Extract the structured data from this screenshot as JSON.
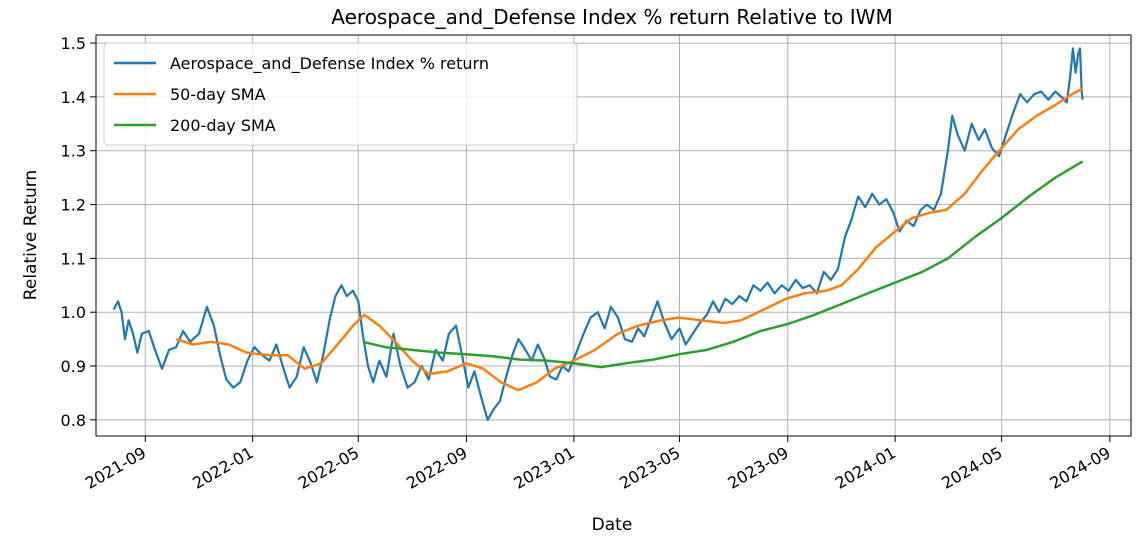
{
  "chart_data": {
    "type": "line",
    "title": "Aerospace_and_Defense Index % return Relative to IWM",
    "xlabel": "Date",
    "ylabel": "Relative Return",
    "xlim": [
      "2021-07-07",
      "2024-09-25"
    ],
    "ylim": [
      0.77,
      1.515
    ],
    "x_ticks": [
      "2021-09",
      "2022-01",
      "2022-05",
      "2022-09",
      "2023-01",
      "2023-05",
      "2023-09",
      "2024-01",
      "2024-05",
      "2024-09"
    ],
    "y_ticks": [
      "0.8",
      "0.9",
      "1.0",
      "1.1",
      "1.2",
      "1.3",
      "1.4",
      "1.5"
    ],
    "grid": true,
    "legend_position": "upper-left",
    "series": [
      {
        "name": "Aerospace_and_Defense Index % return",
        "color": "#1f77b4",
        "points": [
          [
            "2021-07-27",
            1.005
          ],
          [
            "2021-08-01",
            1.02
          ],
          [
            "2021-08-05",
            1.0
          ],
          [
            "2021-08-09",
            0.95
          ],
          [
            "2021-08-13",
            0.985
          ],
          [
            "2021-08-18",
            0.96
          ],
          [
            "2021-08-23",
            0.925
          ],
          [
            "2021-08-28",
            0.96
          ],
          [
            "2021-09-05",
            0.965
          ],
          [
            "2021-09-12",
            0.93
          ],
          [
            "2021-09-20",
            0.895
          ],
          [
            "2021-09-28",
            0.93
          ],
          [
            "2021-10-06",
            0.935
          ],
          [
            "2021-10-14",
            0.965
          ],
          [
            "2021-10-22",
            0.945
          ],
          [
            "2021-11-01",
            0.96
          ],
          [
            "2021-11-10",
            1.01
          ],
          [
            "2021-11-18",
            0.975
          ],
          [
            "2021-11-25",
            0.92
          ],
          [
            "2021-12-02",
            0.875
          ],
          [
            "2021-12-10",
            0.86
          ],
          [
            "2021-12-18",
            0.87
          ],
          [
            "2021-12-26",
            0.91
          ],
          [
            "2022-01-03",
            0.935
          ],
          [
            "2022-01-12",
            0.92
          ],
          [
            "2022-01-20",
            0.91
          ],
          [
            "2022-01-28",
            0.94
          ],
          [
            "2022-02-05",
            0.895
          ],
          [
            "2022-02-12",
            0.86
          ],
          [
            "2022-02-20",
            0.88
          ],
          [
            "2022-02-28",
            0.935
          ],
          [
            "2022-03-08",
            0.905
          ],
          [
            "2022-03-15",
            0.87
          ],
          [
            "2022-03-22",
            0.92
          ],
          [
            "2022-03-30",
            0.99
          ],
          [
            "2022-04-05",
            1.03
          ],
          [
            "2022-04-12",
            1.05
          ],
          [
            "2022-04-18",
            1.03
          ],
          [
            "2022-04-25",
            1.04
          ],
          [
            "2022-05-01",
            1.02
          ],
          [
            "2022-05-06",
            0.96
          ],
          [
            "2022-05-12",
            0.9
          ],
          [
            "2022-05-18",
            0.87
          ],
          [
            "2022-05-25",
            0.91
          ],
          [
            "2022-06-02",
            0.88
          ],
          [
            "2022-06-10",
            0.96
          ],
          [
            "2022-06-18",
            0.9
          ],
          [
            "2022-06-26",
            0.86
          ],
          [
            "2022-07-04",
            0.87
          ],
          [
            "2022-07-12",
            0.9
          ],
          [
            "2022-07-20",
            0.875
          ],
          [
            "2022-07-28",
            0.93
          ],
          [
            "2022-08-05",
            0.91
          ],
          [
            "2022-08-12",
            0.96
          ],
          [
            "2022-08-20",
            0.975
          ],
          [
            "2022-08-27",
            0.92
          ],
          [
            "2022-09-03",
            0.86
          ],
          [
            "2022-09-10",
            0.89
          ],
          [
            "2022-09-18",
            0.84
          ],
          [
            "2022-09-25",
            0.8
          ],
          [
            "2022-10-02",
            0.82
          ],
          [
            "2022-10-09",
            0.835
          ],
          [
            "2022-10-16",
            0.88
          ],
          [
            "2022-10-23",
            0.92
          ],
          [
            "2022-10-30",
            0.95
          ],
          [
            "2022-11-07",
            0.93
          ],
          [
            "2022-11-14",
            0.91
          ],
          [
            "2022-11-21",
            0.94
          ],
          [
            "2022-11-28",
            0.915
          ],
          [
            "2022-12-05",
            0.88
          ],
          [
            "2022-12-12",
            0.875
          ],
          [
            "2022-12-19",
            0.9
          ],
          [
            "2022-12-26",
            0.89
          ],
          [
            "2023-01-05",
            0.93
          ],
          [
            "2023-01-12",
            0.96
          ],
          [
            "2023-01-20",
            0.99
          ],
          [
            "2023-01-28",
            1.0
          ],
          [
            "2023-02-05",
            0.97
          ],
          [
            "2023-02-12",
            1.01
          ],
          [
            "2023-02-20",
            0.99
          ],
          [
            "2023-02-28",
            0.95
          ],
          [
            "2023-03-08",
            0.945
          ],
          [
            "2023-03-15",
            0.97
          ],
          [
            "2023-03-22",
            0.955
          ],
          [
            "2023-03-30",
            0.99
          ],
          [
            "2023-04-06",
            1.02
          ],
          [
            "2023-04-14",
            0.98
          ],
          [
            "2023-04-22",
            0.95
          ],
          [
            "2023-05-01",
            0.97
          ],
          [
            "2023-05-08",
            0.94
          ],
          [
            "2023-05-16",
            0.96
          ],
          [
            "2023-05-24",
            0.98
          ],
          [
            "2023-06-01",
            0.995
          ],
          [
            "2023-06-08",
            1.02
          ],
          [
            "2023-06-15",
            1.0
          ],
          [
            "2023-06-22",
            1.025
          ],
          [
            "2023-06-30",
            1.015
          ],
          [
            "2023-07-08",
            1.03
          ],
          [
            "2023-07-16",
            1.02
          ],
          [
            "2023-07-24",
            1.05
          ],
          [
            "2023-08-01",
            1.04
          ],
          [
            "2023-08-09",
            1.055
          ],
          [
            "2023-08-17",
            1.035
          ],
          [
            "2023-08-25",
            1.05
          ],
          [
            "2023-09-02",
            1.04
          ],
          [
            "2023-09-10",
            1.06
          ],
          [
            "2023-09-18",
            1.045
          ],
          [
            "2023-09-26",
            1.05
          ],
          [
            "2023-10-04",
            1.035
          ],
          [
            "2023-10-12",
            1.075
          ],
          [
            "2023-10-20",
            1.06
          ],
          [
            "2023-10-28",
            1.08
          ],
          [
            "2023-11-05",
            1.14
          ],
          [
            "2023-11-12",
            1.17
          ],
          [
            "2023-11-20",
            1.215
          ],
          [
            "2023-11-28",
            1.195
          ],
          [
            "2023-12-06",
            1.22
          ],
          [
            "2023-12-14",
            1.2
          ],
          [
            "2023-12-22",
            1.21
          ],
          [
            "2023-12-30",
            1.185
          ],
          [
            "2024-01-06",
            1.15
          ],
          [
            "2024-01-14",
            1.17
          ],
          [
            "2024-01-22",
            1.16
          ],
          [
            "2024-01-30",
            1.19
          ],
          [
            "2024-02-06",
            1.2
          ],
          [
            "2024-02-14",
            1.19
          ],
          [
            "2024-02-22",
            1.22
          ],
          [
            "2024-03-01",
            1.3
          ],
          [
            "2024-03-06",
            1.365
          ],
          [
            "2024-03-12",
            1.33
          ],
          [
            "2024-03-20",
            1.3
          ],
          [
            "2024-03-28",
            1.35
          ],
          [
            "2024-04-05",
            1.32
          ],
          [
            "2024-04-12",
            1.34
          ],
          [
            "2024-04-20",
            1.305
          ],
          [
            "2024-04-28",
            1.29
          ],
          [
            "2024-05-06",
            1.33
          ],
          [
            "2024-05-14",
            1.37
          ],
          [
            "2024-05-22",
            1.405
          ],
          [
            "2024-05-30",
            1.39
          ],
          [
            "2024-06-07",
            1.405
          ],
          [
            "2024-06-15",
            1.41
          ],
          [
            "2024-06-23",
            1.395
          ],
          [
            "2024-07-01",
            1.41
          ],
          [
            "2024-07-08",
            1.4
          ],
          [
            "2024-07-14",
            1.39
          ],
          [
            "2024-07-18",
            1.44
          ],
          [
            "2024-07-21",
            1.49
          ],
          [
            "2024-07-24",
            1.445
          ],
          [
            "2024-07-27",
            1.48
          ],
          [
            "2024-07-29",
            1.49
          ],
          [
            "2024-07-31",
            1.41
          ],
          [
            "2024-08-01",
            1.395
          ]
        ]
      },
      {
        "name": "50-day SMA",
        "color": "#ff7f0e",
        "points": [
          [
            "2021-10-06",
            0.95
          ],
          [
            "2021-10-25",
            0.94
          ],
          [
            "2021-11-15",
            0.945
          ],
          [
            "2021-12-05",
            0.94
          ],
          [
            "2021-12-25",
            0.925
          ],
          [
            "2022-01-20",
            0.92
          ],
          [
            "2022-02-10",
            0.92
          ],
          [
            "2022-03-01",
            0.895
          ],
          [
            "2022-03-20",
            0.905
          ],
          [
            "2022-04-10",
            0.945
          ],
          [
            "2022-04-25",
            0.975
          ],
          [
            "2022-05-08",
            0.995
          ],
          [
            "2022-05-25",
            0.975
          ],
          [
            "2022-06-12",
            0.945
          ],
          [
            "2022-07-01",
            0.91
          ],
          [
            "2022-07-20",
            0.885
          ],
          [
            "2022-08-10",
            0.89
          ],
          [
            "2022-09-01",
            0.905
          ],
          [
            "2022-09-20",
            0.895
          ],
          [
            "2022-10-10",
            0.87
          ],
          [
            "2022-10-30",
            0.855
          ],
          [
            "2022-11-20",
            0.87
          ],
          [
            "2022-12-10",
            0.895
          ],
          [
            "2023-01-01",
            0.91
          ],
          [
            "2023-01-25",
            0.93
          ],
          [
            "2023-02-20",
            0.96
          ],
          [
            "2023-03-15",
            0.975
          ],
          [
            "2023-04-10",
            0.985
          ],
          [
            "2023-04-30",
            0.99
          ],
          [
            "2023-05-25",
            0.985
          ],
          [
            "2023-06-20",
            0.98
          ],
          [
            "2023-07-10",
            0.985
          ],
          [
            "2023-08-05",
            1.005
          ],
          [
            "2023-08-30",
            1.025
          ],
          [
            "2023-09-20",
            1.035
          ],
          [
            "2023-10-15",
            1.04
          ],
          [
            "2023-11-01",
            1.05
          ],
          [
            "2023-11-20",
            1.08
          ],
          [
            "2023-12-10",
            1.12
          ],
          [
            "2024-01-01",
            1.15
          ],
          [
            "2024-01-20",
            1.175
          ],
          [
            "2024-02-10",
            1.185
          ],
          [
            "2024-02-28",
            1.19
          ],
          [
            "2024-03-20",
            1.22
          ],
          [
            "2024-04-10",
            1.265
          ],
          [
            "2024-05-01",
            1.305
          ],
          [
            "2024-05-20",
            1.34
          ],
          [
            "2024-06-10",
            1.365
          ],
          [
            "2024-07-01",
            1.385
          ],
          [
            "2024-07-20",
            1.405
          ],
          [
            "2024-08-01",
            1.415
          ]
        ]
      },
      {
        "name": "200-day SMA",
        "color": "#2ca02c",
        "points": [
          [
            "2022-05-06",
            0.945
          ],
          [
            "2022-06-01",
            0.935
          ],
          [
            "2022-07-01",
            0.93
          ],
          [
            "2022-08-01",
            0.925
          ],
          [
            "2022-09-01",
            0.922
          ],
          [
            "2022-10-01",
            0.918
          ],
          [
            "2022-11-01",
            0.912
          ],
          [
            "2022-12-01",
            0.91
          ],
          [
            "2023-01-01",
            0.905
          ],
          [
            "2023-02-01",
            0.898
          ],
          [
            "2023-03-01",
            0.905
          ],
          [
            "2023-04-01",
            0.912
          ],
          [
            "2023-05-01",
            0.922
          ],
          [
            "2023-06-01",
            0.93
          ],
          [
            "2023-07-01",
            0.945
          ],
          [
            "2023-08-01",
            0.965
          ],
          [
            "2023-09-01",
            0.978
          ],
          [
            "2023-10-01",
            0.995
          ],
          [
            "2023-11-01",
            1.015
          ],
          [
            "2023-12-01",
            1.035
          ],
          [
            "2024-01-01",
            1.055
          ],
          [
            "2024-02-01",
            1.075
          ],
          [
            "2024-03-01",
            1.1
          ],
          [
            "2024-04-01",
            1.14
          ],
          [
            "2024-05-01",
            1.175
          ],
          [
            "2024-06-01",
            1.215
          ],
          [
            "2024-07-01",
            1.25
          ],
          [
            "2024-08-01",
            1.28
          ]
        ]
      }
    ]
  }
}
